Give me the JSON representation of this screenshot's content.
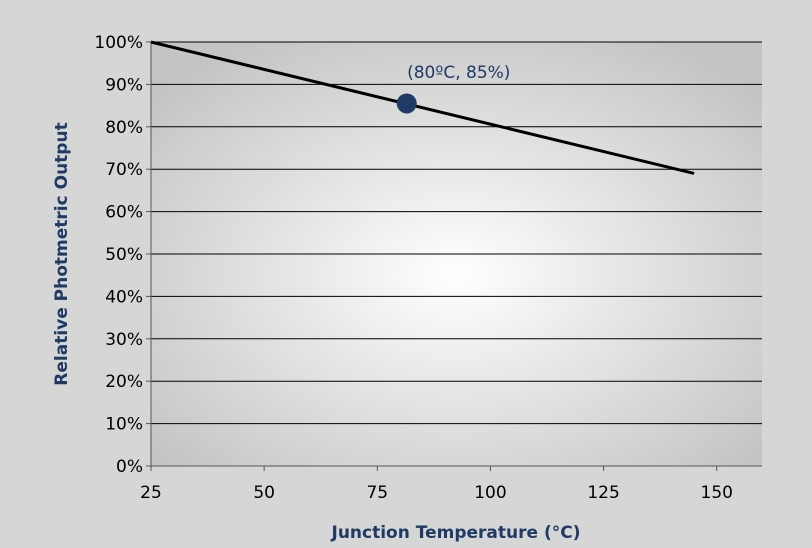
{
  "chart_data": {
    "type": "line",
    "title": "",
    "xlabel": "Junction Temperature (°C)",
    "ylabel": "Relative Photmetric Output",
    "xlim": [
      25,
      160
    ],
    "ylim": [
      0,
      100
    ],
    "x_ticks": [
      25,
      50,
      75,
      100,
      125,
      150
    ],
    "x_tick_labels": [
      "25",
      "50",
      "75",
      "100",
      "125",
      "150"
    ],
    "y_ticks": [
      0,
      10,
      20,
      30,
      40,
      50,
      60,
      70,
      80,
      90,
      100
    ],
    "y_tick_labels": [
      "0%",
      "10%",
      "20%",
      "30%",
      "40%",
      "50%",
      "60%",
      "70%",
      "80%",
      "90%",
      "100%"
    ],
    "grid": "horizontal",
    "legend": "none",
    "series": [
      {
        "x": [
          25,
          145
        ],
        "y": [
          100,
          69
        ],
        "color": "#000000"
      }
    ],
    "highlight_point": {
      "x": 81.5,
      "y": 85.5,
      "color": "#1f3a64"
    },
    "annotations": [
      {
        "text": "(80ºC, 85%)",
        "x": 93,
        "y": 91.5
      }
    ],
    "colors": {
      "axis_title": "#1f3a64",
      "marker": "#1f3a64",
      "outer_background": "#d6d6d6",
      "plot_center": "#ffffff",
      "plot_edge": "#c0c0c0",
      "line": "#000000",
      "grid": "#000000"
    }
  }
}
